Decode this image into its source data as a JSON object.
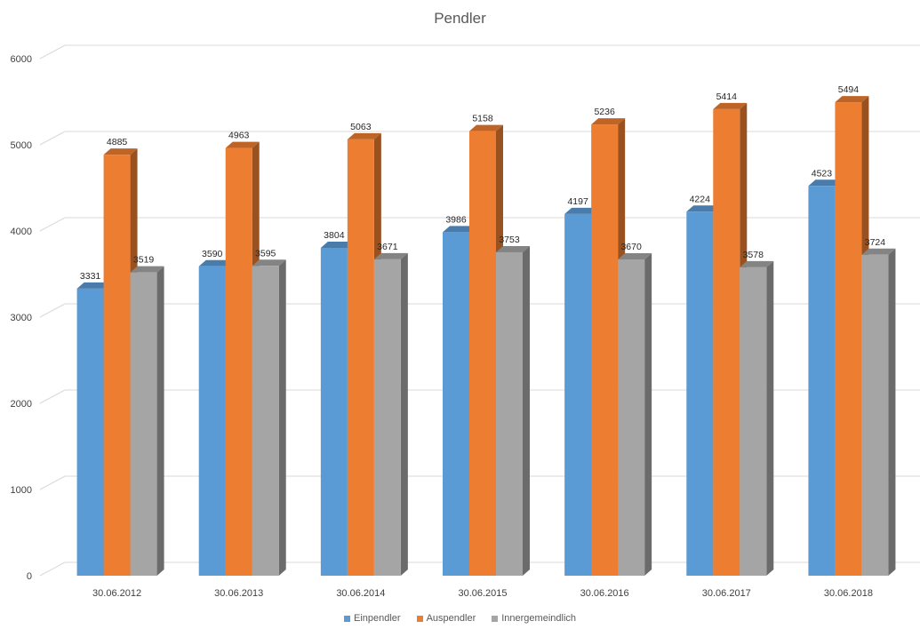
{
  "chart_data": {
    "type": "bar",
    "title": "Pendler",
    "categories": [
      "30.06.2012",
      "30.06.2013",
      "30.06.2014",
      "30.06.2015",
      "30.06.2016",
      "30.06.2017",
      "30.06.2018"
    ],
    "series": [
      {
        "name": "Einpendler",
        "values": [
          3331,
          3590,
          3804,
          3986,
          4197,
          4224,
          4523
        ],
        "color": "#5b9bd5"
      },
      {
        "name": "Auspendler",
        "values": [
          4885,
          4963,
          5063,
          5158,
          5236,
          5414,
          5494
        ],
        "color": "#ed7d31"
      },
      {
        "name": "Innergemeindlich",
        "values": [
          3519,
          3595,
          3671,
          3753,
          3670,
          3578,
          3724
        ],
        "color": "#a5a5a5"
      }
    ],
    "ylim": [
      0,
      6000
    ],
    "yticks": [
      0,
      1000,
      2000,
      3000,
      4000,
      5000,
      6000
    ],
    "grid": true,
    "legend_position": "bottom",
    "style": "3d-column"
  }
}
